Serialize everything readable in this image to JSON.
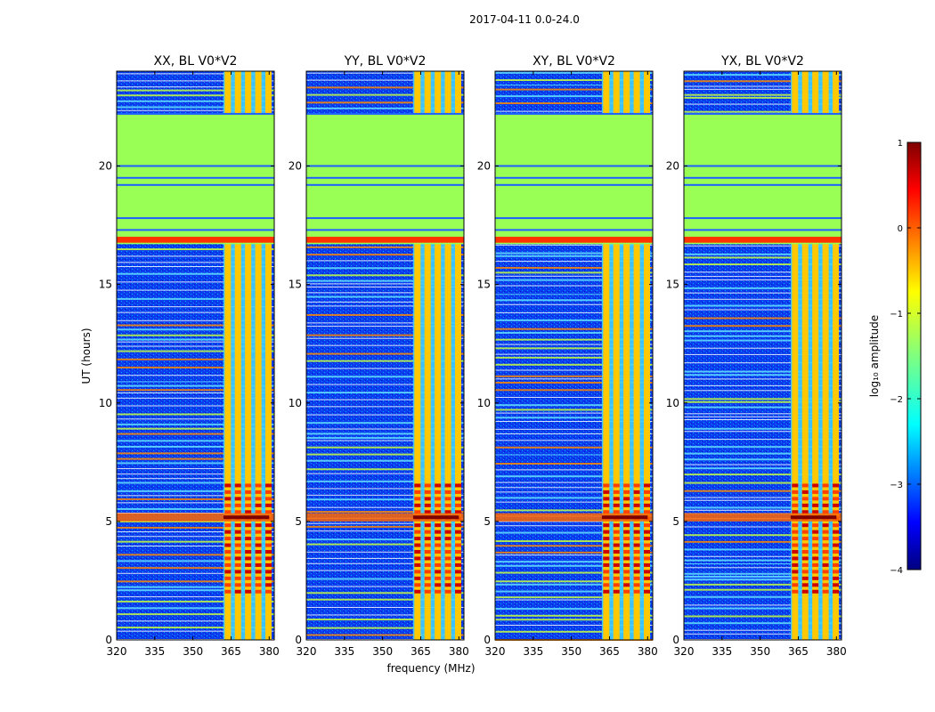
{
  "figure_title": "2017-04-11 0.0-24.0",
  "colors": {
    "background": "#ffffff",
    "noise_floor": "#0050ff",
    "flagged": "#99ff55",
    "rfi": "#ff3300"
  },
  "chart_data": {
    "type": "heatmap",
    "suptitle": "2017-04-11 0.0-24.0",
    "xlabel": "frequency (MHz)",
    "ylabel": "UT (hours)",
    "xlim": [
      320,
      382
    ],
    "ylim": [
      0,
      24
    ],
    "xticks": [
      320,
      335,
      350,
      365,
      380
    ],
    "yticks": [
      0,
      5,
      10,
      15,
      20
    ],
    "panels": [
      {
        "title": "XX, BL V0*V2",
        "pol": "XX",
        "baseline": "V0*V2"
      },
      {
        "title": "YY, BL V0*V2",
        "pol": "YY",
        "baseline": "V0*V2"
      },
      {
        "title": "XY, BL V0*V2",
        "pol": "XY",
        "baseline": "V0*V2"
      },
      {
        "title": "YX, BL V0*V2",
        "pol": "YX",
        "baseline": "V0*V2"
      }
    ],
    "flagged_time_ranges_hours": [
      [
        16.7,
        22.2
      ]
    ],
    "strong_band_mhz": [
      362,
      380
    ],
    "colorbar": {
      "label": "log₁₀ amplitude",
      "range": [
        -4,
        1
      ],
      "ticks": [
        1,
        0,
        -1,
        -2,
        -3,
        -4
      ],
      "tick_labels": [
        "1",
        "0",
        "−1",
        "−2",
        "−3",
        "−4"
      ],
      "colormap": "jet"
    }
  }
}
